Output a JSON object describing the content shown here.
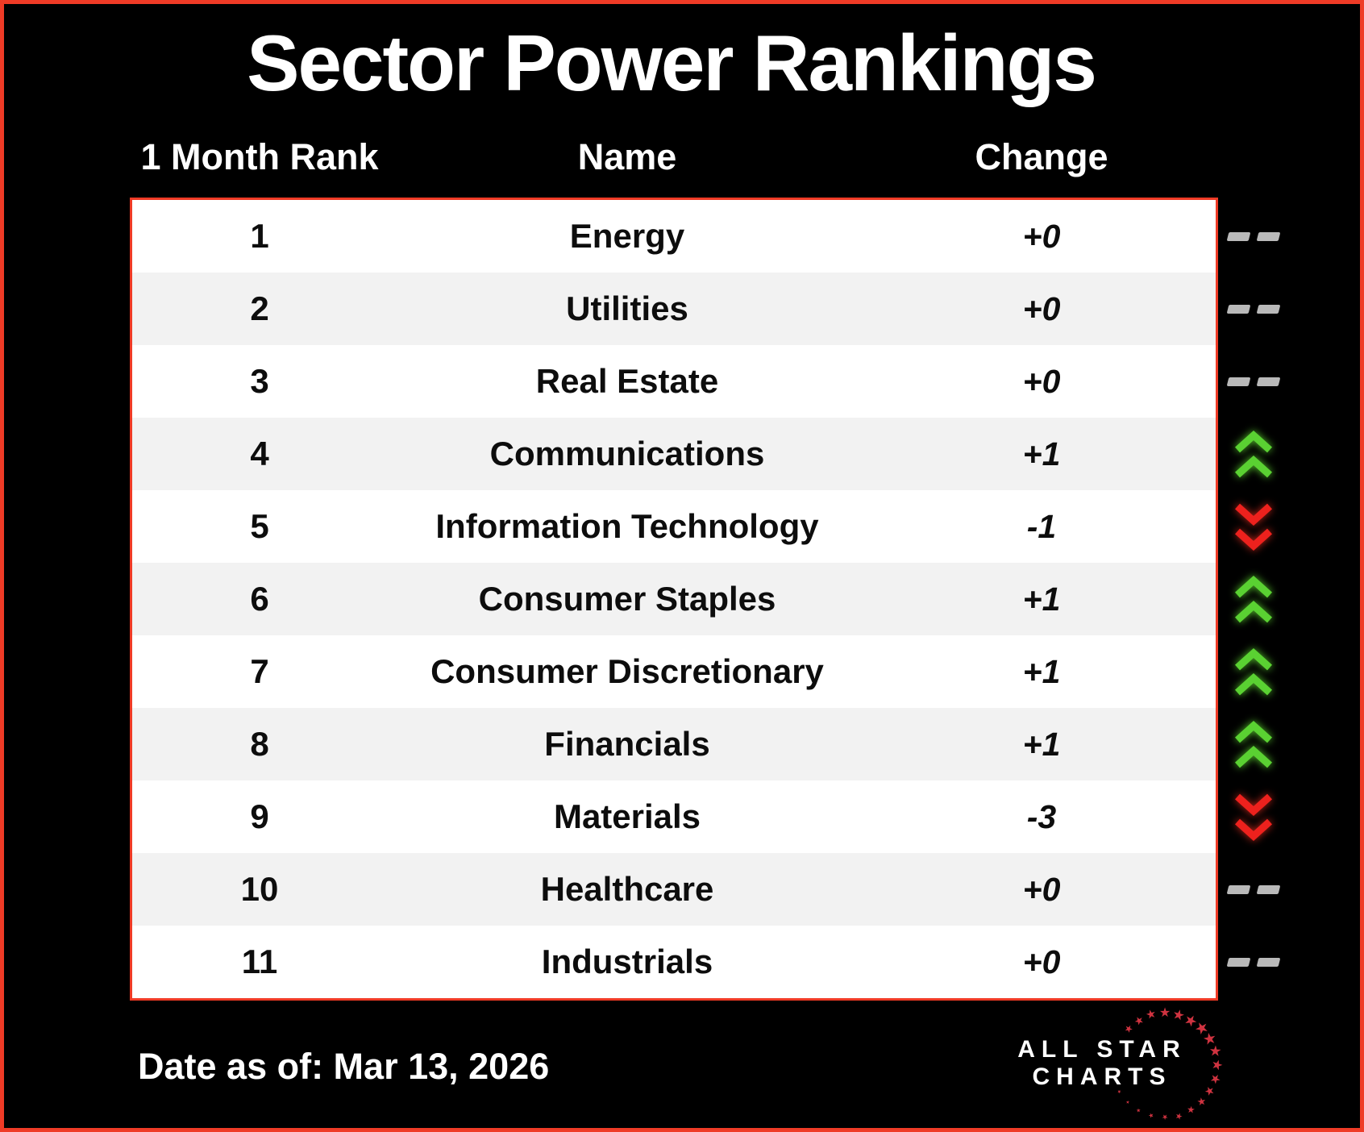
{
  "title": "Sector Power Rankings",
  "columns": {
    "rank": "1 Month Rank",
    "name": "Name",
    "change": "Change"
  },
  "rows": [
    {
      "rank": "1",
      "name": "Energy",
      "change": "+0",
      "direction": "flat"
    },
    {
      "rank": "2",
      "name": "Utilities",
      "change": "+0",
      "direction": "flat"
    },
    {
      "rank": "3",
      "name": "Real Estate",
      "change": "+0",
      "direction": "flat"
    },
    {
      "rank": "4",
      "name": "Communications",
      "change": "+1",
      "direction": "up"
    },
    {
      "rank": "5",
      "name": "Information Technology",
      "change": "-1",
      "direction": "down"
    },
    {
      "rank": "6",
      "name": "Consumer Staples",
      "change": "+1",
      "direction": "up"
    },
    {
      "rank": "7",
      "name": "Consumer Discretionary",
      "change": "+1",
      "direction": "up"
    },
    {
      "rank": "8",
      "name": "Financials",
      "change": "+1",
      "direction": "up"
    },
    {
      "rank": "9",
      "name": "Materials",
      "change": "-3",
      "direction": "down"
    },
    {
      "rank": "10",
      "name": "Healthcare",
      "change": "+0",
      "direction": "flat"
    },
    {
      "rank": "11",
      "name": "Industrials",
      "change": "+0",
      "direction": "flat"
    }
  ],
  "footer": {
    "date_label": "Date as of: Mar 13, 2026"
  },
  "logo": {
    "line1": "ALL STAR",
    "line2": "CHARTS"
  },
  "icons": {
    "up": "double-up-chevron-icon",
    "down": "double-down-chevron-icon",
    "flat": "no-change-dashes-icon"
  },
  "colors": {
    "accent_red": "#ef3b26",
    "up_green": "#5ad132",
    "down_red": "#ed211d",
    "flat_gray": "#b9b9b9",
    "row_alt": "#f2f2f2",
    "star_red": "#cf3340",
    "background": "#000000",
    "text_dark": "#0d0d0d",
    "text_light": "#ffffff"
  }
}
